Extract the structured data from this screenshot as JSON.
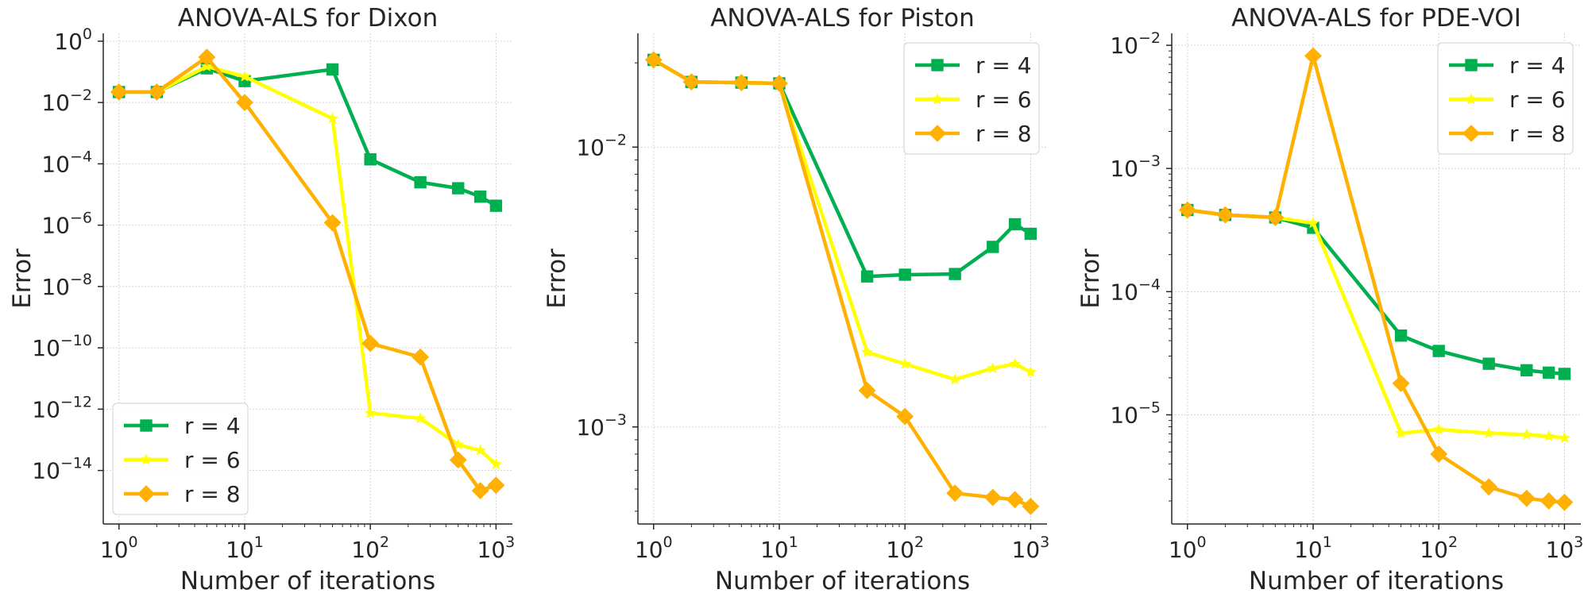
{
  "chart_data": [
    {
      "type": "line",
      "title": "ANOVA-ALS for Dixon",
      "xlabel": "Number of iterations",
      "ylabel": "Error",
      "xscale": "log",
      "yscale": "log",
      "xlim": [
        0.75,
        1350
      ],
      "ylim": [
        1.8e-16,
        1.8
      ],
      "xticks": [
        {
          "base": "10",
          "exp": "0",
          "value": 1
        },
        {
          "base": "10",
          "exp": "1",
          "value": 10
        },
        {
          "base": "10",
          "exp": "2",
          "value": 100
        },
        {
          "base": "10",
          "exp": "3",
          "value": 1000
        }
      ],
      "yticks": [
        {
          "base": "10",
          "exp": "0",
          "value": 1
        },
        {
          "base": "10",
          "exp": "−2",
          "value": 0.01
        },
        {
          "base": "10",
          "exp": "−4",
          "value": 0.0001
        },
        {
          "base": "10",
          "exp": "−6",
          "value": 1e-06
        },
        {
          "base": "10",
          "exp": "−8",
          "value": 1e-08
        },
        {
          "base": "10",
          "exp": "−10",
          "value": 1e-10
        },
        {
          "base": "10",
          "exp": "−12",
          "value": 1e-12
        },
        {
          "base": "10",
          "exp": "−14",
          "value": 1e-14
        }
      ],
      "legend_position": "lower-left",
      "grid": true,
      "series": [
        {
          "name": "r = 4",
          "color": "#00b050",
          "marker": "square",
          "x": [
            1,
            2,
            5,
            10,
            50,
            100,
            250,
            500,
            750,
            1000
          ],
          "y": [
            0.022,
            0.022,
            0.13,
            0.05,
            0.12,
            0.00014,
            2.5e-05,
            1.6e-05,
            8.5e-06,
            4.3e-06
          ]
        },
        {
          "name": "r = 6",
          "color": "#ffff00",
          "marker": "star",
          "x": [
            1,
            2,
            5,
            10,
            50,
            100,
            250,
            500,
            750,
            1000
          ],
          "y": [
            0.022,
            0.022,
            0.15,
            0.07,
            0.003,
            7.5e-13,
            5e-13,
            7e-14,
            4.5e-14,
            1.6e-14
          ]
        },
        {
          "name": "r = 8",
          "color": "#ffb000",
          "marker": "diamond",
          "x": [
            1,
            2,
            5,
            10,
            50,
            100,
            250,
            500,
            750,
            1000
          ],
          "y": [
            0.022,
            0.022,
            0.3,
            0.01,
            1.2e-06,
            1.4e-10,
            5e-11,
            2.2e-14,
            2.2e-15,
            3.3e-15
          ]
        }
      ]
    },
    {
      "type": "line",
      "title": "ANOVA-ALS for Piston",
      "xlabel": "Number of iterations",
      "ylabel": "Error",
      "xscale": "log",
      "yscale": "log",
      "xlim": [
        0.75,
        1350
      ],
      "ylim": [
        0.00045,
        0.0255
      ],
      "xticks": [
        {
          "base": "10",
          "exp": "0",
          "value": 1
        },
        {
          "base": "10",
          "exp": "1",
          "value": 10
        },
        {
          "base": "10",
          "exp": "2",
          "value": 100
        },
        {
          "base": "10",
          "exp": "3",
          "value": 1000
        }
      ],
      "yticks": [
        {
          "base": "10",
          "exp": "−2",
          "value": 0.01
        },
        {
          "base": "10",
          "exp": "−3",
          "value": 0.001
        }
      ],
      "legend_position": "upper-right",
      "grid": true,
      "series": [
        {
          "name": "r = 4",
          "color": "#00b050",
          "marker": "square",
          "x": [
            1,
            2,
            5,
            10,
            50,
            100,
            250,
            500,
            750,
            1000
          ],
          "y": [
            0.0205,
            0.0171,
            0.017,
            0.0169,
            0.00345,
            0.0035,
            0.00352,
            0.0044,
            0.0053,
            0.0049
          ]
        },
        {
          "name": "r = 6",
          "color": "#ffff00",
          "marker": "star",
          "x": [
            1,
            2,
            5,
            10,
            50,
            100,
            250,
            500,
            750,
            1000
          ],
          "y": [
            0.0205,
            0.0171,
            0.017,
            0.0169,
            0.00185,
            0.00168,
            0.00148,
            0.00162,
            0.00168,
            0.00157
          ]
        },
        {
          "name": "r = 8",
          "color": "#ffb000",
          "marker": "diamond",
          "x": [
            1,
            2,
            5,
            10,
            50,
            100,
            250,
            500,
            750,
            1000
          ],
          "y": [
            0.0205,
            0.0171,
            0.017,
            0.0169,
            0.00135,
            0.00109,
            0.00058,
            0.00056,
            0.00055,
            0.00052
          ]
        }
      ]
    },
    {
      "type": "line",
      "title": "ANOVA-ALS for PDE-VOI",
      "xlabel": "Number of iterations",
      "ylabel": "Error",
      "xscale": "log",
      "yscale": "log",
      "xlim": [
        0.75,
        1350
      ],
      "ylim": [
        1.3e-06,
        0.0125
      ],
      "xticks": [
        {
          "base": "10",
          "exp": "0",
          "value": 1
        },
        {
          "base": "10",
          "exp": "1",
          "value": 10
        },
        {
          "base": "10",
          "exp": "2",
          "value": 100
        },
        {
          "base": "10",
          "exp": "3",
          "value": 1000
        }
      ],
      "yticks": [
        {
          "base": "10",
          "exp": "−2",
          "value": 0.01
        },
        {
          "base": "10",
          "exp": "−3",
          "value": 0.001
        },
        {
          "base": "10",
          "exp": "−4",
          "value": 0.0001
        },
        {
          "base": "10",
          "exp": "−5",
          "value": 1e-05
        }
      ],
      "legend_position": "upper-right",
      "grid": true,
      "series": [
        {
          "name": "r = 4",
          "color": "#00b050",
          "marker": "square",
          "x": [
            1,
            2,
            5,
            10,
            50,
            100,
            250,
            500,
            750,
            1000
          ],
          "y": [
            0.00046,
            0.00042,
            0.0004,
            0.00033,
            4.4e-05,
            3.3e-05,
            2.6e-05,
            2.3e-05,
            2.2e-05,
            2.15e-05
          ]
        },
        {
          "name": "r = 6",
          "color": "#ffff00",
          "marker": "star",
          "x": [
            1,
            2,
            5,
            10,
            50,
            100,
            250,
            500,
            750,
            1000
          ],
          "y": [
            0.00046,
            0.00042,
            0.0004,
            0.00036,
            7.1e-06,
            7.6e-06,
            7.1e-06,
            6.9e-06,
            6.7e-06,
            6.5e-06
          ]
        },
        {
          "name": "r = 8",
          "color": "#ffb000",
          "marker": "diamond",
          "x": [
            1,
            2,
            5,
            10,
            50,
            100,
            250,
            500,
            750,
            1000
          ],
          "y": [
            0.00046,
            0.00042,
            0.0004,
            0.0082,
            1.8e-05,
            4.8e-06,
            2.6e-06,
            2.1e-06,
            2e-06,
            1.95e-06
          ]
        }
      ]
    }
  ]
}
